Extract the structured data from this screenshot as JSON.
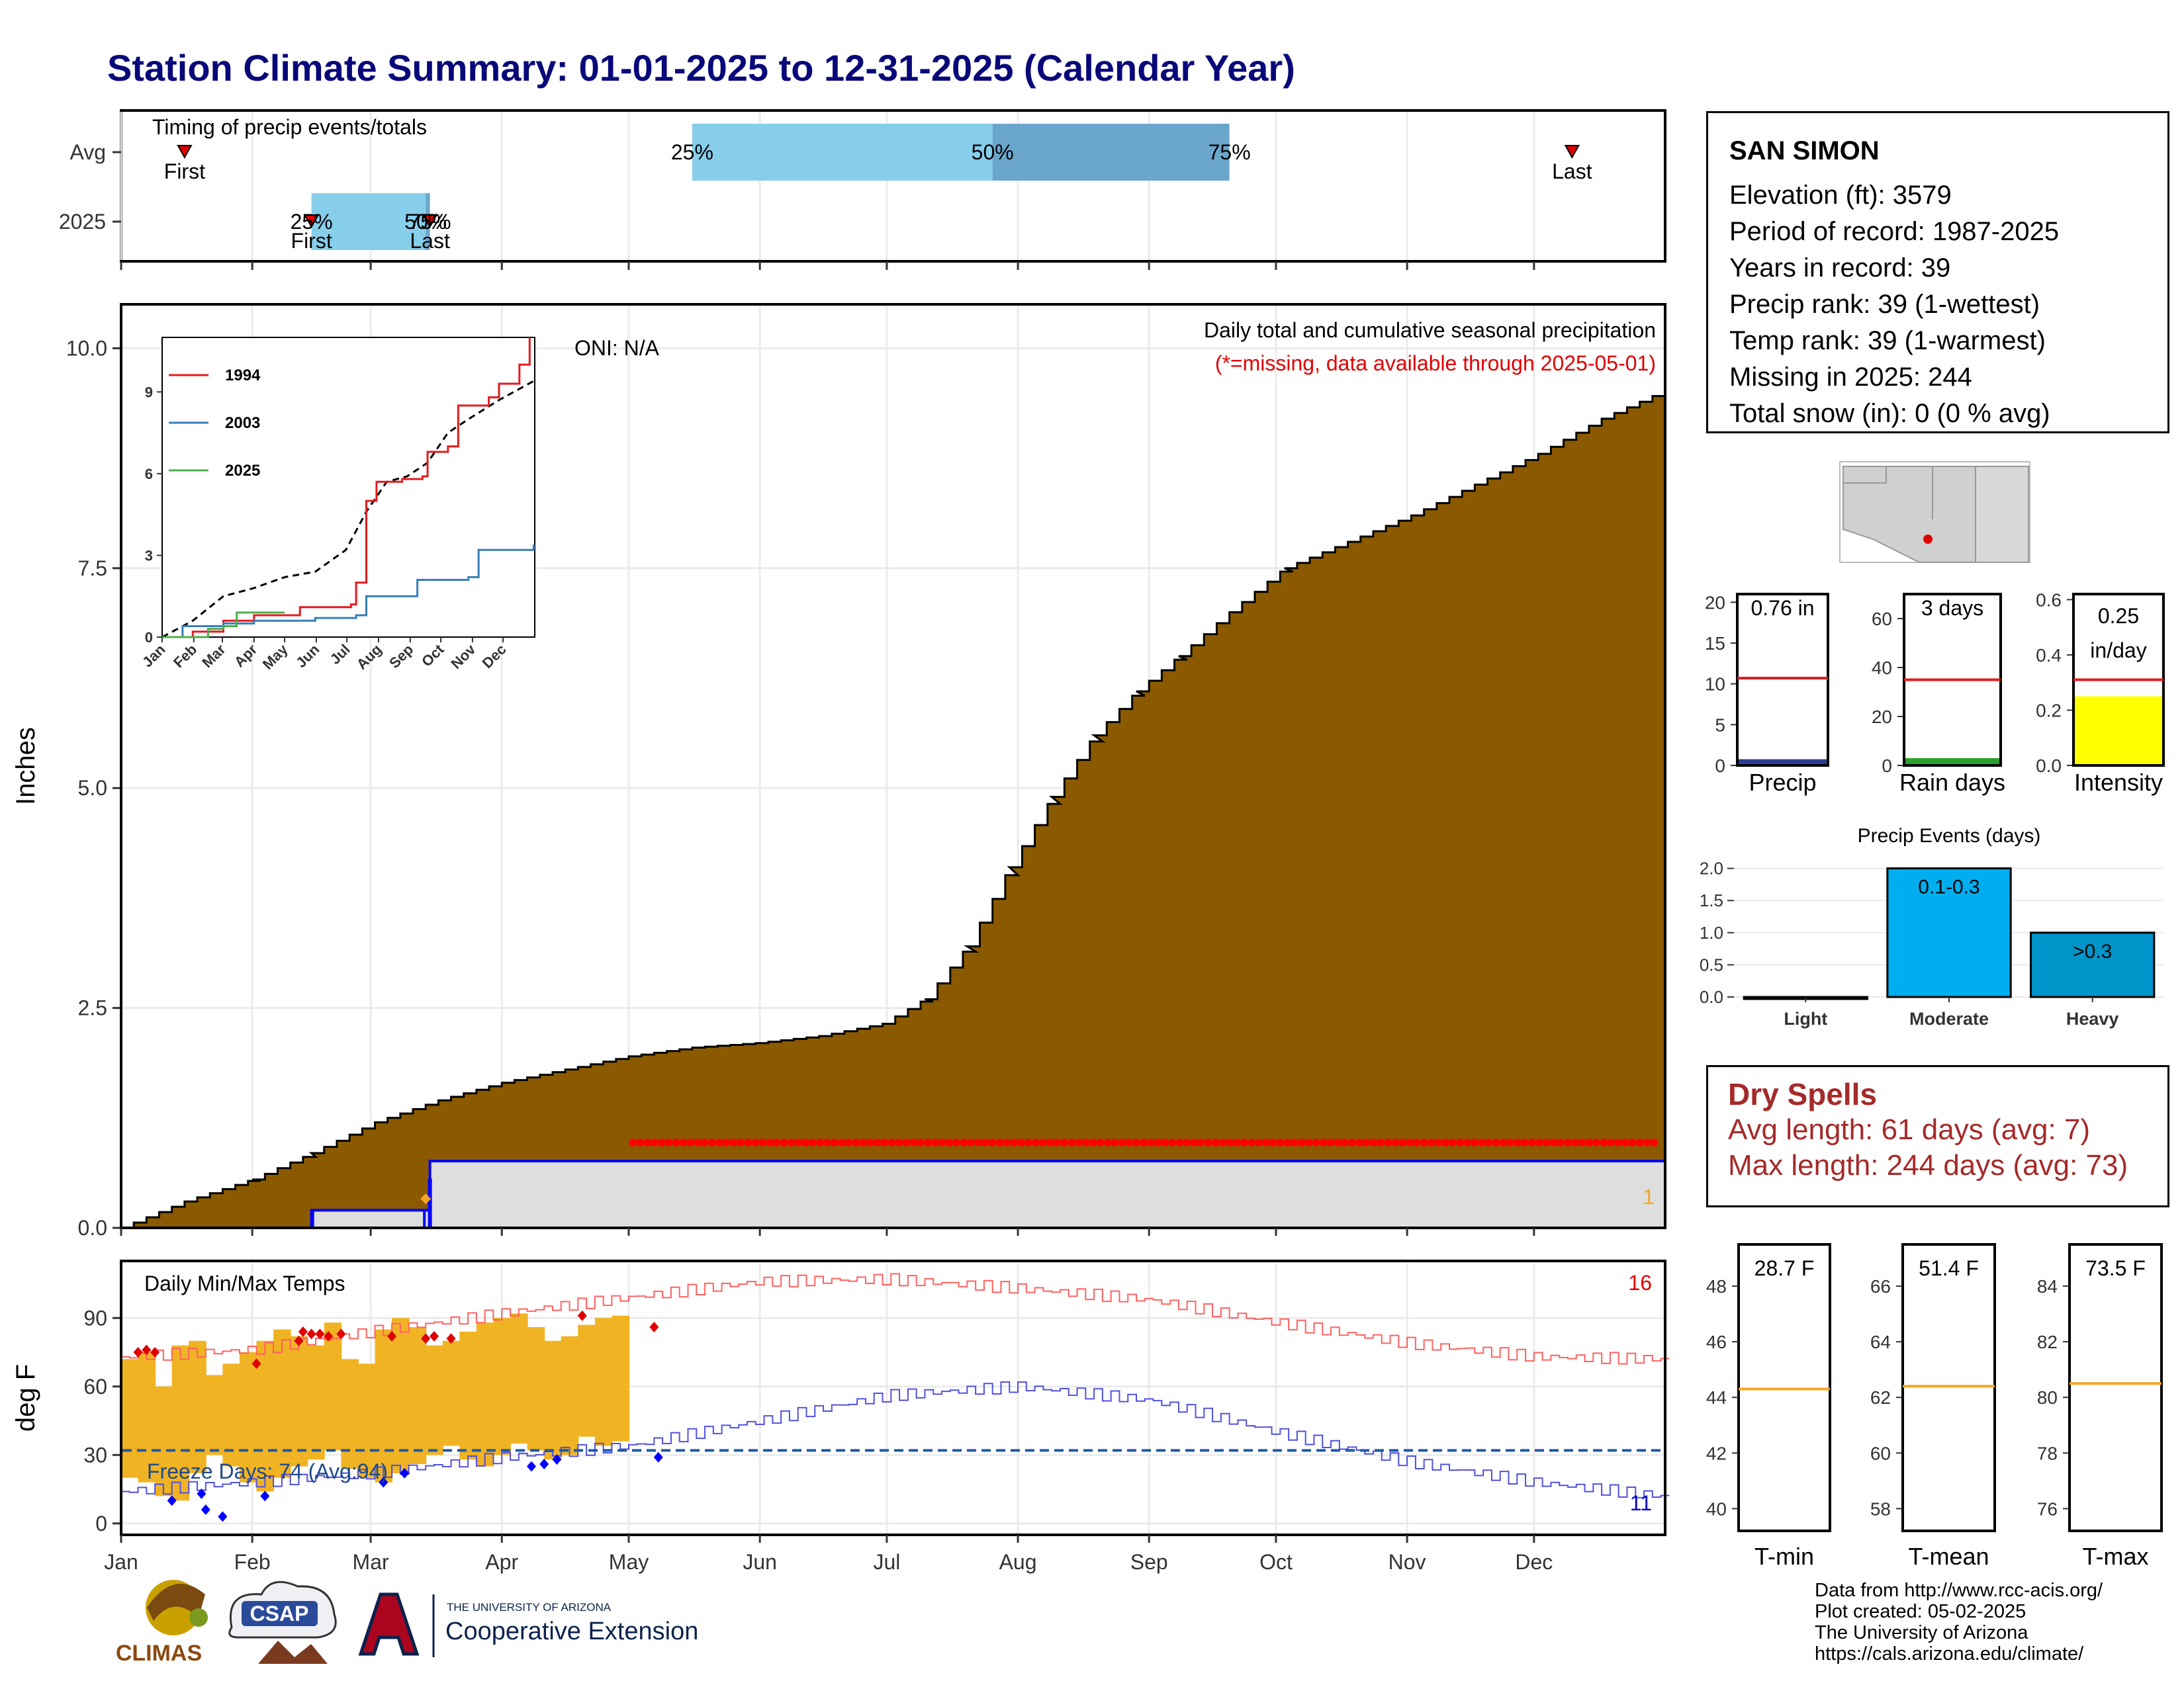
{
  "title": "Station Climate Summary: 01-01-2025 to 12-31-2025 (Calendar Year)",
  "months": [
    "Jan",
    "Feb",
    "Mar",
    "Apr",
    "May",
    "Jun",
    "Jul",
    "Aug",
    "Sep",
    "Oct",
    "Nov",
    "Dec"
  ],
  "timing": {
    "label": "Timing of precip events/totals",
    "rows": [
      "Avg",
      "2025"
    ],
    "first_label": "First",
    "last_label": "Last",
    "avg": {
      "first_doy": 15,
      "p25_doy": 135,
      "p50_doy": 206,
      "p75_doy": 262,
      "last_doy": 343
    },
    "y2025": {
      "first_doy": 45,
      "p25_doy": 45,
      "p50_doy": 72,
      "p75_doy": 73,
      "last_doy": 73
    },
    "pct_labels": [
      "25%",
      "50%",
      "75%"
    ]
  },
  "precip": {
    "ylabel": "Inches",
    "oni": "ONI: N/A",
    "caption": "Daily total and cumulative seasonal precipitation",
    "missing_note": "(*=missing, data available through 2025-05-01)",
    "missing_count": "1",
    "yticks": [
      "0.0",
      "2.5",
      "5.0",
      "7.5",
      "10.0"
    ],
    "ylim": [
      0,
      10.5
    ],
    "avg_cumulative": [
      [
        0,
        0
      ],
      [
        15,
        0.3
      ],
      [
        31,
        0.55
      ],
      [
        45,
        0.85
      ],
      [
        60,
        1.2
      ],
      [
        75,
        1.45
      ],
      [
        90,
        1.65
      ],
      [
        105,
        1.8
      ],
      [
        120,
        1.95
      ],
      [
        135,
        2.05
      ],
      [
        150,
        2.1
      ],
      [
        165,
        2.18
      ],
      [
        180,
        2.32
      ],
      [
        190,
        2.6
      ],
      [
        200,
        3.2
      ],
      [
        210,
        4.1
      ],
      [
        220,
        4.9
      ],
      [
        230,
        5.6
      ],
      [
        240,
        6.1
      ],
      [
        250,
        6.5
      ],
      [
        262,
        7.0
      ],
      [
        275,
        7.5
      ],
      [
        290,
        7.8
      ],
      [
        305,
        8.1
      ],
      [
        320,
        8.45
      ],
      [
        335,
        8.8
      ],
      [
        350,
        9.2
      ],
      [
        364,
        9.5
      ]
    ],
    "y2025_cumulative": [
      [
        0,
        0
      ],
      [
        44,
        0
      ],
      [
        45,
        0.2
      ],
      [
        72,
        0.2
      ],
      [
        73,
        0.76
      ],
      [
        120,
        0.76
      ],
      [
        364,
        0.76
      ]
    ],
    "colors": {
      "avg_fill": "#8b5a00",
      "y2025_line": "#0000ff",
      "y2025_fill": "#dedede",
      "missing": "#ff0000"
    }
  },
  "inset": {
    "legend": [
      "1994",
      "2003",
      "2025"
    ],
    "colors": [
      "#e41a1c",
      "#377eb8",
      "#4daf4a"
    ],
    "yticks": [
      "0",
      "3",
      "6",
      "9"
    ],
    "ylim": [
      0,
      11
    ],
    "series": [
      {
        "name": "1994",
        "points": [
          [
            0,
            0
          ],
          [
            30,
            0
          ],
          [
            30,
            0.2
          ],
          [
            60,
            0.3
          ],
          [
            60,
            0.6
          ],
          [
            90,
            0.7
          ],
          [
            90,
            0.8
          ],
          [
            135,
            0.9
          ],
          [
            135,
            1.1
          ],
          [
            185,
            1.2
          ],
          [
            190,
            2.0
          ],
          [
            200,
            5.0
          ],
          [
            210,
            5.7
          ],
          [
            235,
            5.8
          ],
          [
            255,
            5.9
          ],
          [
            260,
            6.8
          ],
          [
            280,
            7.0
          ],
          [
            290,
            8.5
          ],
          [
            320,
            8.8
          ],
          [
            330,
            9.3
          ],
          [
            350,
            10.0
          ],
          [
            360,
            11.0
          ]
        ]
      },
      {
        "name": "2003",
        "points": [
          [
            0,
            0
          ],
          [
            20,
            0
          ],
          [
            20,
            0.4
          ],
          [
            60,
            0.5
          ],
          [
            90,
            0.6
          ],
          [
            150,
            0.7
          ],
          [
            190,
            0.8
          ],
          [
            200,
            1.5
          ],
          [
            250,
            2.1
          ],
          [
            300,
            2.2
          ],
          [
            310,
            3.2
          ],
          [
            364,
            3.4
          ]
        ]
      },
      {
        "name": "2025",
        "points": [
          [
            0,
            0
          ],
          [
            45,
            0
          ],
          [
            45,
            0.3
          ],
          [
            60,
            0.4
          ],
          [
            72,
            0.4
          ],
          [
            73,
            0.9
          ],
          [
            120,
            0.9
          ]
        ]
      }
    ],
    "avg": [
      [
        0,
        0
      ],
      [
        30,
        0.6
      ],
      [
        60,
        1.5
      ],
      [
        90,
        1.8
      ],
      [
        120,
        2.2
      ],
      [
        150,
        2.4
      ],
      [
        180,
        3.2
      ],
      [
        200,
        4.6
      ],
      [
        220,
        5.7
      ],
      [
        240,
        5.9
      ],
      [
        260,
        6.4
      ],
      [
        280,
        7.5
      ],
      [
        300,
        8.0
      ],
      [
        330,
        8.7
      ],
      [
        364,
        9.4
      ]
    ]
  },
  "temps": {
    "ylabel": "deg F",
    "label": "Daily Min/Max Temps",
    "freeze_label": "Freeze Days: 74 (Avg:94)",
    "count_hot": "16",
    "count_cold": "11",
    "yticks": [
      "0",
      "30",
      "60",
      "90"
    ],
    "ylim": [
      -5,
      115
    ],
    "freeze_line": 32,
    "normal_max": [
      [
        0,
        73
      ],
      [
        31,
        76
      ],
      [
        59,
        84
      ],
      [
        90,
        92
      ],
      [
        120,
        99
      ],
      [
        151,
        106
      ],
      [
        181,
        107
      ],
      [
        212,
        103
      ],
      [
        243,
        98
      ],
      [
        273,
        88
      ],
      [
        304,
        79
      ],
      [
        334,
        73
      ],
      [
        364,
        72
      ]
    ],
    "normal_min": [
      [
        0,
        14
      ],
      [
        31,
        18
      ],
      [
        59,
        22
      ],
      [
        90,
        29
      ],
      [
        120,
        34
      ],
      [
        151,
        45
      ],
      [
        181,
        56
      ],
      [
        212,
        60
      ],
      [
        243,
        54
      ],
      [
        273,
        40
      ],
      [
        304,
        27
      ],
      [
        334,
        18
      ],
      [
        364,
        12
      ]
    ],
    "obs_max": [
      72,
      75,
      60,
      78,
      80,
      65,
      70,
      75,
      80,
      85,
      82,
      78,
      88,
      72,
      70,
      85,
      90,
      86,
      78,
      80,
      84,
      88,
      90,
      92,
      86,
      80,
      82,
      87,
      90,
      91
    ],
    "obs_min": [
      20,
      18,
      12,
      10,
      22,
      30,
      25,
      18,
      14,
      20,
      25,
      28,
      32,
      24,
      20,
      18,
      22,
      26,
      30,
      34,
      28,
      25,
      30,
      35,
      32,
      28,
      30,
      38,
      34,
      36
    ],
    "colors": {
      "band": "#f0b323",
      "normal_max": "#ff6060",
      "normal_min": "#5050e0",
      "freeze": "#1f5aa6"
    }
  },
  "mini_precip": {
    "panels": [
      {
        "label": "Precip",
        "value": "0.76 in",
        "observed": 0.76,
        "normal": 10.7,
        "yticks": [
          "0",
          "5",
          "10",
          "15",
          "20"
        ],
        "ylim": [
          0,
          21
        ],
        "fill": "#2c3e8f"
      },
      {
        "label": "Rain days",
        "value": "3 days",
        "observed": 3,
        "normal": 35,
        "yticks": [
          "0",
          "20",
          "40",
          "60"
        ],
        "ylim": [
          0,
          70
        ],
        "fill": "#2ca02c"
      },
      {
        "label": "Intensity",
        "value_line1": "0.25",
        "value_line2": "in/day",
        "observed": 0.25,
        "normal": 0.31,
        "yticks": [
          "0.0",
          "0.2",
          "0.4",
          "0.6"
        ],
        "ylim": [
          0,
          0.62
        ],
        "fill": "#ffff00"
      }
    ],
    "normal_color": "#e41a1c"
  },
  "events": {
    "title": "Precip Events (days)",
    "categories": [
      "Light",
      "Moderate",
      "Heavy"
    ],
    "values": [
      0,
      2,
      1
    ],
    "bar_labels": [
      "",
      "0.1-0.3",
      ">0.3"
    ],
    "colors": [
      "#00aeef",
      "#00aeef",
      "#0094c8"
    ],
    "yticks": [
      "0.0",
      "0.5",
      "1.0",
      "1.5",
      "2.0"
    ],
    "ylim": [
      0,
      2.15
    ]
  },
  "mini_temps": {
    "panels": [
      {
        "label": "T-min",
        "value": "28.7 F",
        "normal": 44.3,
        "yticks": [
          "40",
          "42",
          "44",
          "46",
          "48"
        ],
        "ylim": [
          39.2,
          49.5
        ]
      },
      {
        "label": "T-mean",
        "value": "51.4 F",
        "normal": 62.4,
        "yticks": [
          "58",
          "60",
          "62",
          "64",
          "66"
        ],
        "ylim": [
          57.2,
          67.5
        ]
      },
      {
        "label": "T-max",
        "value": "73.5 F",
        "normal": 80.5,
        "yticks": [
          "76",
          "78",
          "80",
          "82",
          "84"
        ],
        "ylim": [
          75.2,
          85.5
        ]
      }
    ],
    "normal_color": "#f5a623"
  },
  "station": {
    "name": "SAN SIMON",
    "lines": [
      "Elevation (ft): 3579",
      "Period of record: 1987-2025",
      "Years in record: 39",
      "Precip rank: 39 (1-wettest)",
      "Temp rank: 39 (1-warmest)",
      "Missing in 2025: 244",
      "Total snow (in): 0 (0 % avg)"
    ]
  },
  "dry_spells": {
    "title": "Dry Spells",
    "avg": "Avg length: 61 days (avg: 7)",
    "max": "Max length: 244 days (avg: 73)"
  },
  "logos": {
    "climas": "CLIMAS",
    "csap": "CSAP",
    "ua_small": "THE UNIVERSITY OF ARIZONA",
    "ua_big": "Cooperative Extension"
  },
  "credits": [
    "Data from http://www.rcc-acis.org/",
    "Plot created: 05-02-2025",
    "The University of Arizona",
    "https://cals.arizona.edu/climate/"
  ]
}
